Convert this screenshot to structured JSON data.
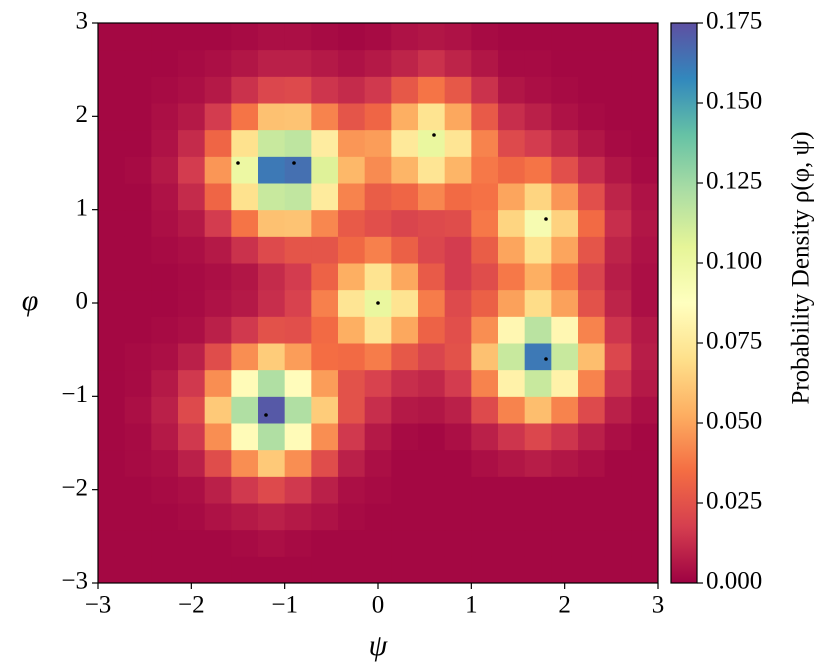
{
  "chart_data": {
    "type": "heatmap",
    "xlabel": "ψ",
    "ylabel": "φ",
    "colorbar_label": "Probability Density ρ(φ, ψ)",
    "xlim": [
      -3,
      3
    ],
    "ylim": [
      -3,
      3
    ],
    "xticks": [
      {
        "value": -3,
        "label": "−3"
      },
      {
        "value": -2,
        "label": "−2"
      },
      {
        "value": -1,
        "label": "−1"
      },
      0,
      1,
      2,
      3
    ],
    "yticks": [
      {
        "value": -3,
        "label": "−3"
      },
      {
        "value": -2,
        "label": "−2"
      },
      {
        "value": -1,
        "label": "−1"
      },
      0,
      1,
      2,
      3
    ],
    "clim": [
      0,
      0.175
    ],
    "cticks": [
      {
        "value": 0,
        "label": "0.000"
      },
      {
        "value": 0.025,
        "label": "0.025"
      },
      {
        "value": 0.05,
        "label": "0.050"
      },
      {
        "value": 0.075,
        "label": "0.075"
      },
      {
        "value": 0.1,
        "label": "0.100"
      },
      {
        "value": 0.125,
        "label": "0.125"
      },
      {
        "value": 0.15,
        "label": "0.150"
      },
      {
        "value": 0.175,
        "label": "0.175"
      }
    ],
    "colormap": [
      "#9e0142",
      "#d53e4f",
      "#f46d43",
      "#fdae61",
      "#fee08b",
      "#ffffbf",
      "#e6f598",
      "#abdda4",
      "#66c2a5",
      "#3288bd",
      "#5e4fa2"
    ],
    "z": [
      [
        0.002,
        0.002,
        0.002,
        0.002,
        0.002,
        0.002,
        0.002,
        0.002,
        0.002,
        0.002,
        0.002,
        0.002,
        0.002,
        0.002,
        0.002,
        0.002,
        0.002,
        0.002,
        0.002,
        0.002,
        0.002
      ],
      [
        0.002,
        0.002,
        0.002,
        0.002,
        0.002,
        0.003,
        0.004,
        0.003,
        0.002,
        0.002,
        0.002,
        0.002,
        0.002,
        0.002,
        0.002,
        0.002,
        0.002,
        0.002,
        0.002,
        0.002,
        0.002
      ],
      [
        0.002,
        0.002,
        0.002,
        0.003,
        0.005,
        0.007,
        0.009,
        0.007,
        0.005,
        0.003,
        0.002,
        0.002,
        0.002,
        0.002,
        0.002,
        0.002,
        0.002,
        0.002,
        0.002,
        0.002,
        0.002
      ],
      [
        0.002,
        0.002,
        0.003,
        0.004,
        0.009,
        0.016,
        0.022,
        0.016,
        0.009,
        0.004,
        0.003,
        0.002,
        0.002,
        0.002,
        0.002,
        0.002,
        0.002,
        0.002,
        0.002,
        0.002,
        0.002
      ],
      [
        0.002,
        0.003,
        0.004,
        0.009,
        0.023,
        0.044,
        0.062,
        0.044,
        0.023,
        0.009,
        0.004,
        0.002,
        0.002,
        0.002,
        0.004,
        0.006,
        0.008,
        0.006,
        0.004,
        0.002,
        0.002
      ],
      [
        0.002,
        0.003,
        0.007,
        0.016,
        0.044,
        0.085,
        0.121,
        0.085,
        0.044,
        0.016,
        0.007,
        0.003,
        0.002,
        0.004,
        0.009,
        0.015,
        0.021,
        0.015,
        0.009,
        0.004,
        0.002
      ],
      [
        0.002,
        0.004,
        0.009,
        0.022,
        0.062,
        0.121,
        0.172,
        0.121,
        0.063,
        0.025,
        0.013,
        0.007,
        0.006,
        0.009,
        0.022,
        0.041,
        0.058,
        0.041,
        0.022,
        0.009,
        0.004
      ],
      [
        0.002,
        0.003,
        0.007,
        0.016,
        0.044,
        0.085,
        0.121,
        0.086,
        0.048,
        0.025,
        0.019,
        0.013,
        0.011,
        0.017,
        0.041,
        0.08,
        0.114,
        0.08,
        0.041,
        0.015,
        0.007
      ],
      [
        0.002,
        0.003,
        0.004,
        0.009,
        0.023,
        0.044,
        0.063,
        0.048,
        0.035,
        0.034,
        0.039,
        0.027,
        0.02,
        0.025,
        0.059,
        0.114,
        0.162,
        0.114,
        0.058,
        0.021,
        0.008
      ],
      [
        0.002,
        0.002,
        0.003,
        0.004,
        0.009,
        0.016,
        0.025,
        0.024,
        0.034,
        0.053,
        0.073,
        0.051,
        0.031,
        0.024,
        0.044,
        0.083,
        0.118,
        0.083,
        0.041,
        0.015,
        0.007
      ],
      [
        0.002,
        0.002,
        0.002,
        0.003,
        0.005,
        0.007,
        0.013,
        0.019,
        0.04,
        0.073,
        0.102,
        0.072,
        0.039,
        0.022,
        0.03,
        0.049,
        0.069,
        0.049,
        0.025,
        0.01,
        0.004
      ],
      [
        0.002,
        0.002,
        0.002,
        0.003,
        0.004,
        0.006,
        0.012,
        0.017,
        0.031,
        0.053,
        0.072,
        0.051,
        0.028,
        0.017,
        0.023,
        0.038,
        0.053,
        0.038,
        0.02,
        0.008,
        0.004
      ],
      [
        0.002,
        0.002,
        0.003,
        0.004,
        0.007,
        0.014,
        0.022,
        0.026,
        0.026,
        0.033,
        0.04,
        0.03,
        0.021,
        0.017,
        0.029,
        0.05,
        0.071,
        0.05,
        0.026,
        0.01,
        0.005
      ],
      [
        0.002,
        0.002,
        0.004,
        0.007,
        0.017,
        0.037,
        0.059,
        0.06,
        0.042,
        0.028,
        0.024,
        0.02,
        0.022,
        0.023,
        0.038,
        0.066,
        0.094,
        0.065,
        0.034,
        0.013,
        0.006
      ],
      [
        0.002,
        0.002,
        0.005,
        0.012,
        0.032,
        0.071,
        0.114,
        0.116,
        0.076,
        0.041,
        0.029,
        0.032,
        0.042,
        0.034,
        0.036,
        0.05,
        0.066,
        0.046,
        0.024,
        0.01,
        0.005
      ],
      [
        0.002,
        0.003,
        0.007,
        0.017,
        0.046,
        0.1,
        0.162,
        0.165,
        0.107,
        0.056,
        0.043,
        0.055,
        0.073,
        0.055,
        0.038,
        0.033,
        0.037,
        0.024,
        0.013,
        0.006,
        0.003
      ],
      [
        0.002,
        0.002,
        0.005,
        0.012,
        0.032,
        0.071,
        0.114,
        0.117,
        0.077,
        0.046,
        0.048,
        0.075,
        0.102,
        0.073,
        0.041,
        0.022,
        0.017,
        0.011,
        0.006,
        0.003,
        0.002
      ],
      [
        0.002,
        0.002,
        0.004,
        0.007,
        0.017,
        0.037,
        0.059,
        0.06,
        0.041,
        0.026,
        0.032,
        0.053,
        0.072,
        0.051,
        0.028,
        0.013,
        0.009,
        0.005,
        0.003,
        0.002,
        0.002
      ],
      [
        0.002,
        0.002,
        0.003,
        0.004,
        0.007,
        0.014,
        0.021,
        0.022,
        0.015,
        0.012,
        0.016,
        0.027,
        0.037,
        0.027,
        0.014,
        0.006,
        0.004,
        0.003,
        0.002,
        0.002,
        0.002
      ],
      [
        0.002,
        0.002,
        0.002,
        0.003,
        0.004,
        0.006,
        0.009,
        0.009,
        0.007,
        0.005,
        0.007,
        0.01,
        0.014,
        0.01,
        0.006,
        0.003,
        0.003,
        0.002,
        0.002,
        0.002,
        0.002
      ],
      [
        0.002,
        0.002,
        0.002,
        0.002,
        0.002,
        0.003,
        0.004,
        0.004,
        0.003,
        0.002,
        0.003,
        0.005,
        0.006,
        0.005,
        0.003,
        0.002,
        0.002,
        0.002,
        0.002,
        0.002,
        0.002
      ]
    ],
    "points": {
      "x": [
        -1.5,
        -0.9,
        0.6,
        1.8,
        0,
        1.8,
        -1.2
      ],
      "y": [
        1.5,
        1.5,
        1.8,
        0.9,
        0,
        -0.6,
        -1.2
      ],
      "color": "#000000"
    }
  }
}
